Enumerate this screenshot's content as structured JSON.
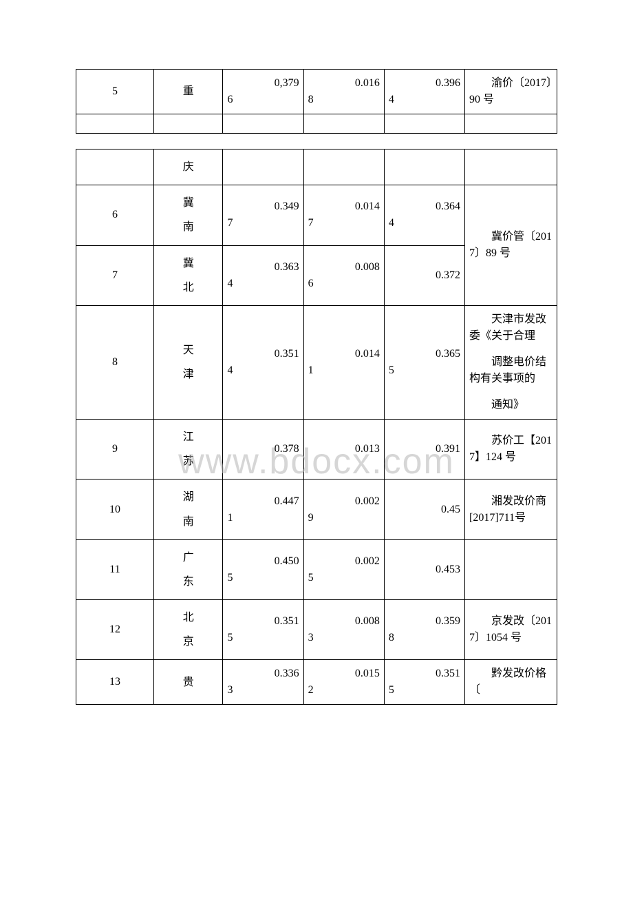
{
  "watermark": "www.bdocx.com",
  "upper_rows": [
    {
      "idx": "5",
      "prov": "重",
      "v1_main": "0,379",
      "v1_sub": "6",
      "v2_main": "0.016",
      "v2_sub": "8",
      "v3_main": "0.396",
      "v3_sub": "4",
      "note_lines": [
        "渝价〔2017〕90 号"
      ]
    }
  ],
  "upper_empty": true,
  "lower_first_prov": "庆",
  "lower_rows": [
    {
      "idx": "6",
      "prov_multi": "冀南",
      "v1_main": "0.349",
      "v1_sub": "7",
      "v2_main": "0.014",
      "v2_sub": "7",
      "v3_main": "0.364",
      "v3_sub": "4",
      "note_lines": [
        "冀价管〔2017〕89 号"
      ],
      "note_span": 2
    },
    {
      "idx": "7",
      "prov_multi": "冀北",
      "v1_main": "0.363",
      "v1_sub": "4",
      "v2_main": "0.008",
      "v2_sub": "6",
      "v3_main": "0.372",
      "v3_sub": ""
    },
    {
      "idx": "8",
      "prov_multi": "天津",
      "v1_main": "0.351",
      "v1_sub": "4",
      "v2_main": "0.014",
      "v2_sub": "1",
      "v3_main": "0.365",
      "v3_sub": "5",
      "note_paras": [
        "天津市发改委《关于合理",
        "调整电价结构有关事项的",
        "通知》"
      ]
    },
    {
      "idx": "9",
      "prov_multi": "江苏",
      "v1_main": "0.378",
      "v1_sub": "",
      "v2_main": "0.013",
      "v2_sub": "",
      "v3_main": "0.391",
      "v3_sub": "",
      "note_lines": [
        "苏价工【2017】124 号"
      ]
    },
    {
      "idx": "10",
      "prov_multi": "湖南",
      "v1_main": "0.447",
      "v1_sub": "1",
      "v2_main": "0.002",
      "v2_sub": "9",
      "v3_main": "0.45",
      "v3_sub": "",
      "note_lines": [
        "湘发改价商[2017]711号"
      ]
    },
    {
      "idx": "11",
      "prov_multi": "广东",
      "v1_main": "0.450",
      "v1_sub": "5",
      "v2_main": "0.002",
      "v2_sub": "5",
      "v3_main": "0.453",
      "v3_sub": "",
      "note_lines": [
        ""
      ]
    },
    {
      "idx": "12",
      "prov_multi": "北京",
      "v1_main": "0.351",
      "v1_sub": "5",
      "v2_main": "0.008",
      "v2_sub": "3",
      "v3_main": "0.359",
      "v3_sub": "8",
      "note_lines": [
        "京发改〔2017〕1054 号"
      ]
    },
    {
      "idx": "13",
      "prov": "贵",
      "v1_main": "0.336",
      "v1_sub": "3",
      "v2_main": "0.015",
      "v2_sub": "2",
      "v3_main": "0.351",
      "v3_sub": "5",
      "note_lines": [
        "黔发改价格〔"
      ]
    }
  ]
}
